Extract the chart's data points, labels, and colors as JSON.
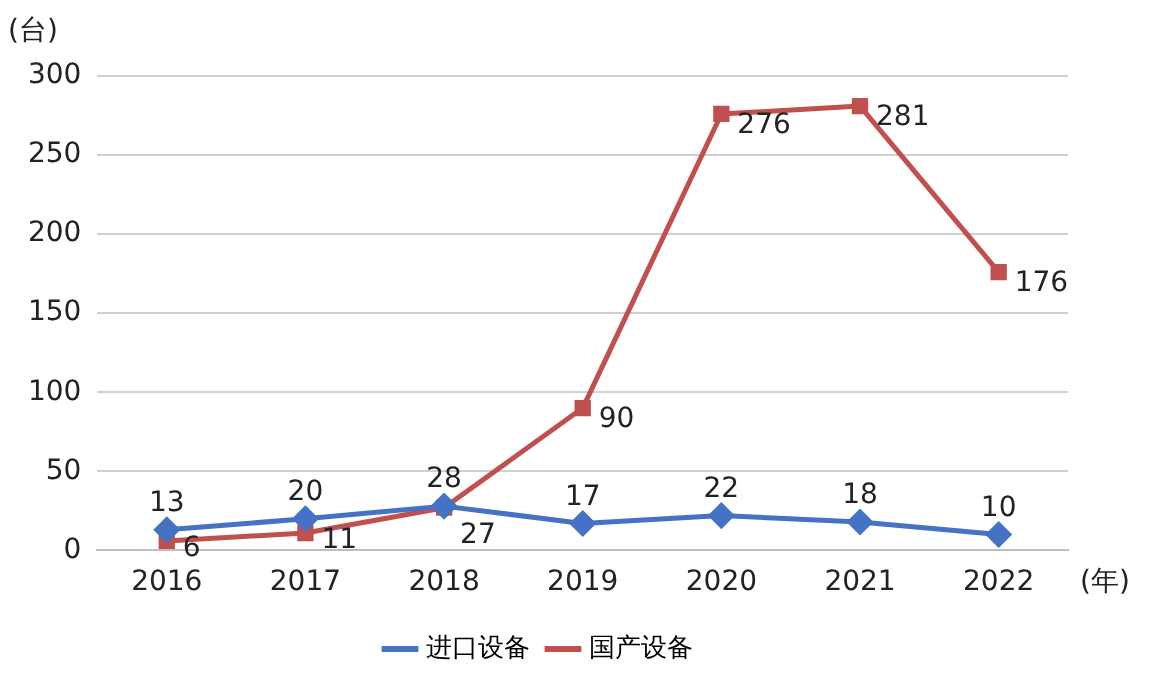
{
  "chart_data": {
    "type": "line",
    "ylabel": "(台)",
    "xlabel": "(年)",
    "categories": [
      "2016",
      "2017",
      "2018",
      "2019",
      "2020",
      "2021",
      "2022"
    ],
    "series": [
      {
        "name": "进口设备",
        "color": "#4472c4",
        "marker": "diamond",
        "values": [
          13,
          20,
          28,
          17,
          22,
          18,
          10
        ]
      },
      {
        "name": "国产设备",
        "color": "#c0504d",
        "marker": "square",
        "values": [
          6,
          11,
          27,
          90,
          276,
          281,
          176
        ]
      }
    ],
    "ylim": [
      0,
      300
    ],
    "yticks": [
      0,
      50,
      100,
      150,
      200,
      250,
      300
    ],
    "grid": "y",
    "legend": "bottom",
    "data_labels": true,
    "line_style": "solid"
  }
}
